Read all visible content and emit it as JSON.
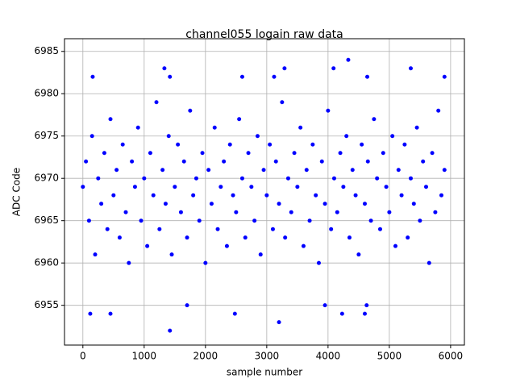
{
  "chart_data": {
    "type": "scatter",
    "title": "channel055 logain raw data",
    "x_label": "sample number",
    "y_label": "ADC Code",
    "color": "#0000ff",
    "grid": true,
    "xlim": [
      -300,
      6225
    ],
    "ylim": [
      6950.3,
      6986.5
    ],
    "xticks": [
      0,
      1000,
      2000,
      3000,
      4000,
      5000,
      6000
    ],
    "yticks": [
      6955,
      6960,
      6965,
      6970,
      6975,
      6980,
      6985
    ],
    "x": [
      0,
      50,
      100,
      150,
      200,
      250,
      300,
      350,
      400,
      450,
      500,
      550,
      600,
      650,
      700,
      750,
      800,
      850,
      900,
      950,
      1000,
      1050,
      1100,
      1150,
      1200,
      1250,
      1300,
      1350,
      1400,
      1450,
      1500,
      1550,
      1600,
      1650,
      1700,
      1750,
      1800,
      1850,
      1900,
      1950,
      2000,
      2050,
      2100,
      2150,
      2200,
      2250,
      2300,
      2350,
      2400,
      2450,
      2500,
      2550,
      2600,
      2650,
      2700,
      2750,
      2800,
      2850,
      2900,
      2950,
      3000,
      3050,
      3100,
      3150,
      3200,
      3250,
      3300,
      3350,
      3400,
      3450,
      3500,
      3550,
      3600,
      3650,
      3700,
      3750,
      3800,
      3850,
      3900,
      3950,
      4000,
      4050,
      4100,
      4150,
      4200,
      4250,
      4300,
      4350,
      4400,
      4450,
      4500,
      4550,
      4600,
      4650,
      4700,
      4750,
      4800,
      4850,
      4900,
      4950,
      5000,
      5050,
      5100,
      5150,
      5200,
      5250,
      5300,
      5350,
      5400,
      5450,
      5500,
      5550,
      5600,
      5650,
      5700,
      5750,
      5800,
      5850,
      5900,
      1420,
      3200,
      2480,
      120,
      450,
      4230,
      4600,
      1700,
      3950,
      4630,
      4330,
      1330,
      3290,
      4090,
      5350,
      160,
      1420,
      2600,
      3120,
      4640,
      5900
    ],
    "y": [
      6969,
      6972,
      6965,
      6975,
      6961,
      6970,
      6967,
      6973,
      6964,
      6977,
      6968,
      6971,
      6963,
      6974,
      6966,
      6960,
      6972,
      6969,
      6976,
      6965,
      6970,
      6962,
      6973,
      6968,
      6979,
      6964,
      6971,
      6967,
      6975,
      6961,
      6969,
      6974,
      6966,
      6972,
      6963,
      6978,
      6968,
      6970,
      6965,
      6973,
      6960,
      6971,
      6967,
      6976,
      6964,
      6969,
      6972,
      6962,
      6974,
      6968,
      6966,
      6977,
      6970,
      6963,
      6973,
      6969,
      6965,
      6975,
      6961,
      6971,
      6968,
      6974,
      6964,
      6972,
      6967,
      6979,
      6963,
      6970,
      6966,
      6973,
      6969,
      6976,
      6962,
      6971,
      6965,
      6974,
      6968,
      6960,
      6972,
      6967,
      6978,
      6964,
      6970,
      6966,
      6973,
      6969,
      6975,
      6963,
      6971,
      6968,
      6961,
      6974,
      6967,
      6972,
      6965,
      6977,
      6970,
      6964,
      6973,
      6969,
      6966,
      6975,
      6962,
      6971,
      6968,
      6974,
      6963,
      6970,
      6967,
      6976,
      6965,
      6972,
      6969,
      6960,
      6973,
      6966,
      6978,
      6968,
      6971,
      6952,
      6953,
      6954,
      6954,
      6954,
      6954,
      6954,
      6955,
      6955,
      6955,
      6984,
      6983,
      6983,
      6983,
      6983,
      6982,
      6982,
      6982,
      6982,
      6982,
      6982
    ]
  }
}
